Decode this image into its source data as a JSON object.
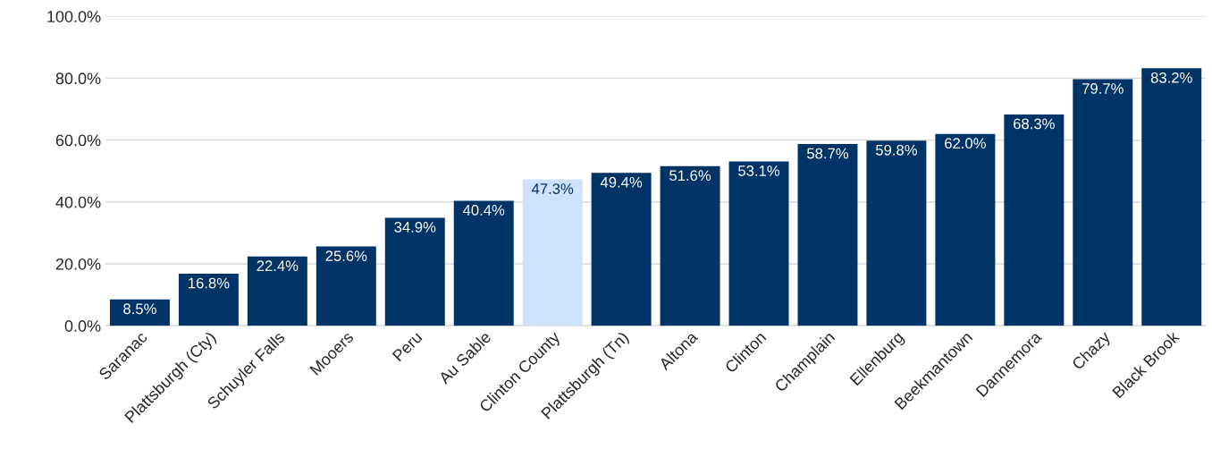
{
  "chart_data": {
    "type": "bar",
    "categories": [
      "Saranac",
      "Plattsburgh (Cty)",
      "Schuyler Falls",
      "Mooers",
      "Peru",
      "Au Sable",
      "Clinton County",
      "Plattsburgh (Tn)",
      "Altona",
      "Clinton",
      "Champlain",
      "Ellenburg",
      "Beekmantown",
      "Dannemora",
      "Chazy",
      "Black Brook"
    ],
    "values": [
      8.5,
      16.8,
      22.4,
      25.6,
      34.9,
      40.4,
      47.3,
      49.4,
      51.6,
      53.1,
      58.7,
      59.8,
      62.0,
      68.3,
      79.7,
      83.2
    ],
    "value_labels": [
      "8.5%",
      "16.8%",
      "22.4%",
      "25.6%",
      "34.9%",
      "40.4%",
      "47.3%",
      "49.4%",
      "51.6%",
      "53.1%",
      "58.7%",
      "59.8%",
      "62.0%",
      "68.3%",
      "79.7%",
      "83.2%"
    ],
    "colors": [
      "#003366",
      "#003366",
      "#003366",
      "#003366",
      "#003366",
      "#003366",
      "#cfe2fb",
      "#003366",
      "#003366",
      "#003366",
      "#003366",
      "#003366",
      "#003366",
      "#003366",
      "#003366",
      "#003366"
    ],
    "ylim": [
      0,
      100
    ],
    "yticks": [
      {
        "value": 0,
        "label": "0.0%"
      },
      {
        "value": 20,
        "label": "20.0%"
      },
      {
        "value": 40,
        "label": "40.0%"
      },
      {
        "value": 60,
        "label": "60.0%"
      },
      {
        "value": 80,
        "label": "80.0%"
      },
      {
        "value": 100,
        "label": "100.0%"
      }
    ],
    "grid": "y",
    "legend": false
  }
}
